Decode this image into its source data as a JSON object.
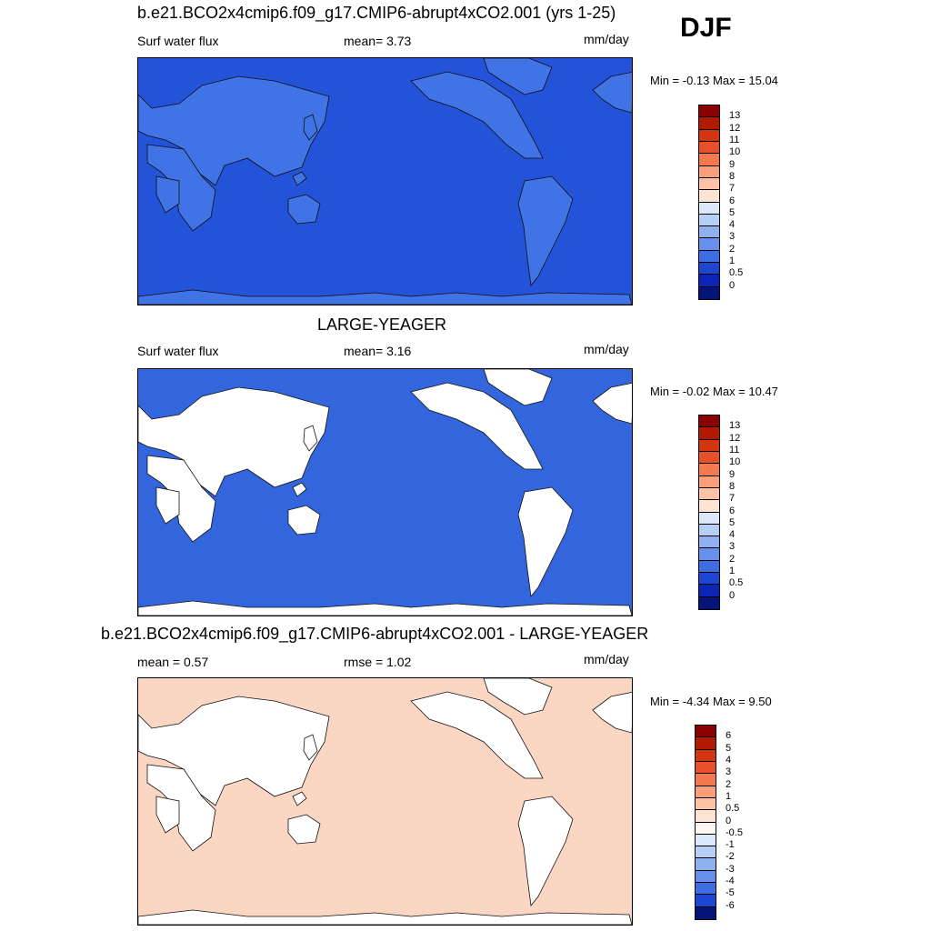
{
  "season": "DJF",
  "panels": [
    {
      "title": "b.e21.BCO2x4cmip6.f09_g17.CMIP6-abrupt4xCO2.001 (yrs 1-25)",
      "left_label": "Surf water flux",
      "center_label": "mean=   3.73",
      "units": "mm/day",
      "minmax": "Min =  -0.13 Max =  15.04",
      "land_filled": true,
      "ocean_color": "#2253d8",
      "land_color": "#3f73e6"
    },
    {
      "title": "LARGE-YEAGER",
      "left_label": "Surf water flux",
      "center_label": "mean=   3.16",
      "units": "mm/day",
      "minmax": "Min =  -0.02 Max =  10.47",
      "land_filled": false,
      "ocean_color": "#3366dd",
      "land_color": "#ffffff"
    },
    {
      "title": "b.e21.BCO2x4cmip6.f09_g17.CMIP6-abrupt4xCO2.001 - LARGE-YEAGER",
      "left_label": "mean =   0.57",
      "center_label": "rmse =   1.02",
      "units": "mm/day",
      "minmax": "Min =  -4.34 Max =   9.50",
      "land_filled": false,
      "ocean_color": "#fbd6c2",
      "land_color": "#ffffff"
    }
  ],
  "legend_flux": {
    "labels": [
      "13",
      "12",
      "11",
      "10",
      "9",
      "8",
      "7",
      "6",
      "5",
      "4",
      "3",
      "2",
      "1",
      "0.5",
      "0"
    ],
    "colors": [
      "#8b0000",
      "#b21a00",
      "#d33511",
      "#e8502a",
      "#f4794f",
      "#f9a07b",
      "#fcc3a5",
      "#fde3d2",
      "#dbe8fb",
      "#b6cff7",
      "#8fb1f2",
      "#6690ec",
      "#3e6ce3",
      "#1d47d3",
      "#0a25b8",
      "#041478"
    ]
  },
  "legend_diff": {
    "labels": [
      "6",
      "5",
      "4",
      "3",
      "2",
      "1",
      "0.5",
      "0",
      "-0.5",
      "-1",
      "-2",
      "-3",
      "-4",
      "-5",
      "-6"
    ],
    "colors": [
      "#8b0000",
      "#b21a00",
      "#d33511",
      "#e8502a",
      "#f4794f",
      "#f9a07b",
      "#fcc3a5",
      "#fde3d2",
      "#fef6f0",
      "#dbe8fb",
      "#b6cff7",
      "#8fb1f2",
      "#6690ec",
      "#3e6ce3",
      "#1d47d3",
      "#041478"
    ]
  }
}
